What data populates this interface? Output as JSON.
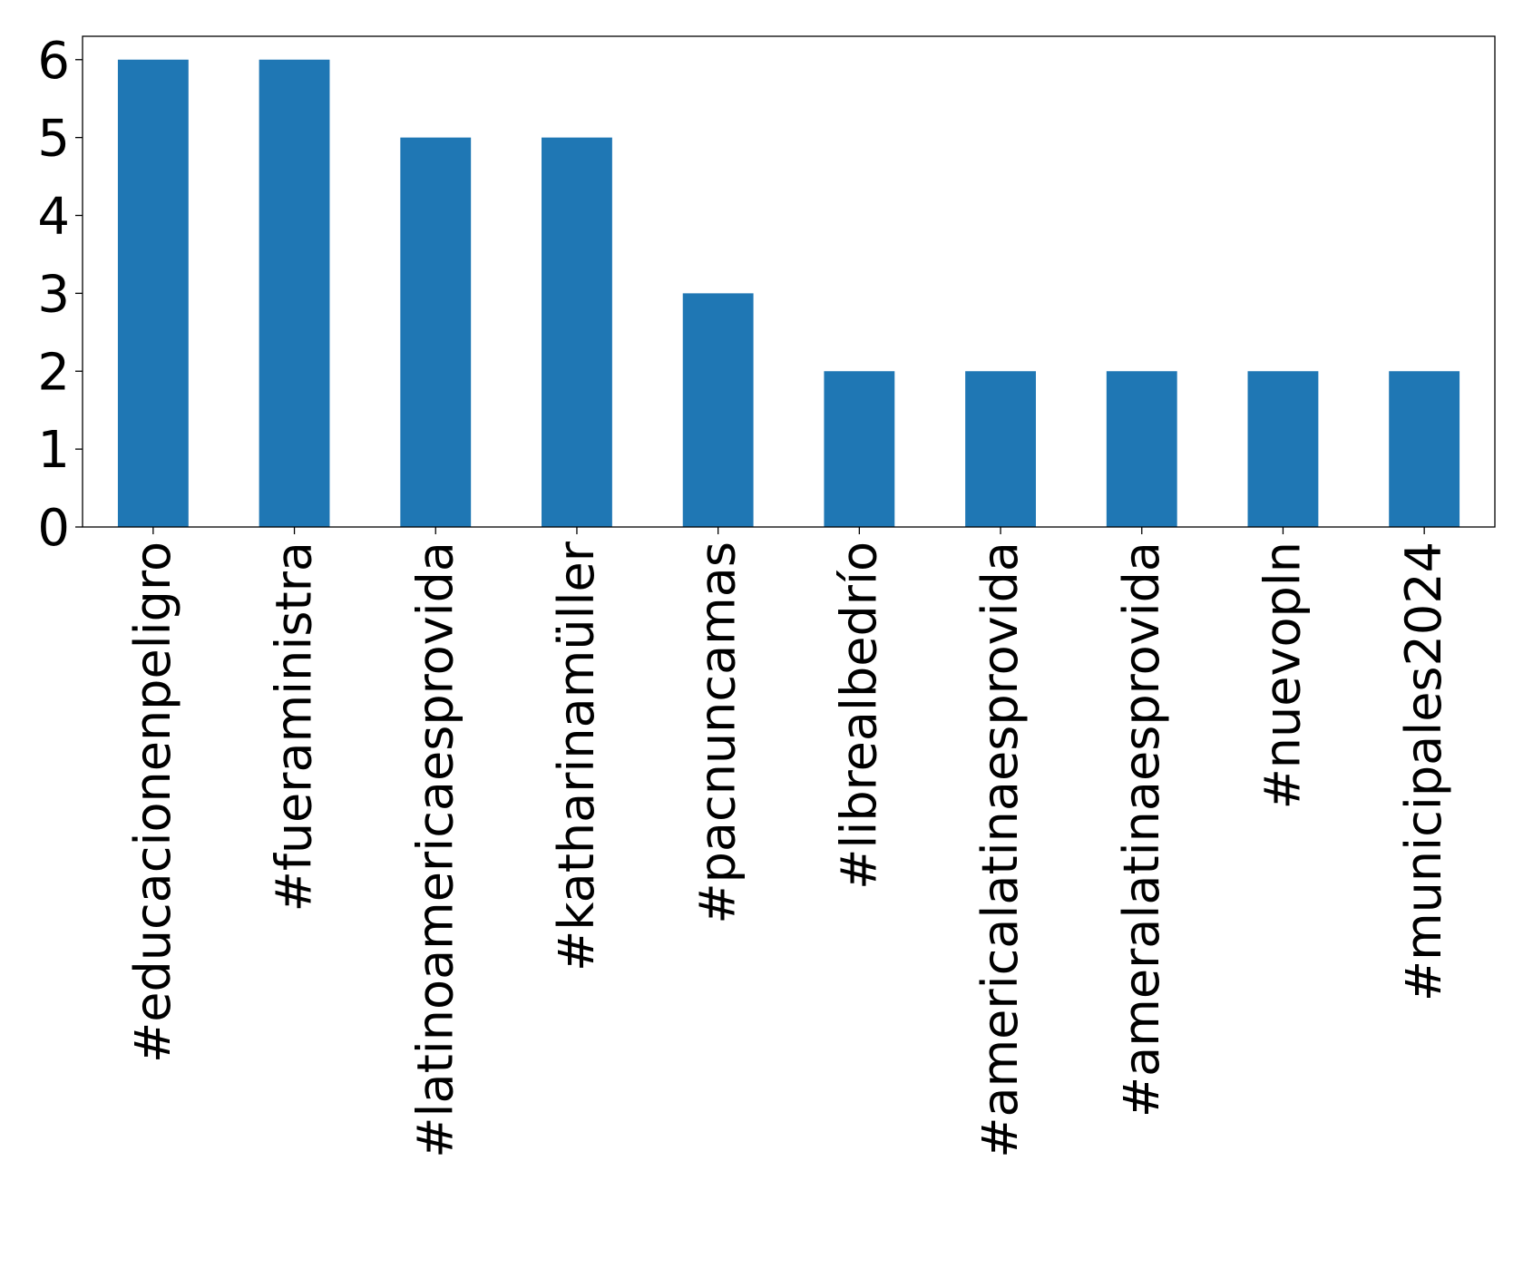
{
  "chart_data": {
    "type": "bar",
    "categories": [
      "#educacionenpeligro",
      "#fueraministra",
      "#latinoamericaesprovida",
      "#katharinamüller",
      "#pacnuncamas",
      "#librealbedrío",
      "#americalatinaesprovida",
      "#ameralatinaesprovida",
      "#nuevopln",
      "#municipales2024"
    ],
    "values": [
      6,
      6,
      5,
      5,
      3,
      2,
      2,
      2,
      2,
      2
    ],
    "ylim": [
      0,
      6.3
    ],
    "yticks": [
      0,
      1,
      2,
      3,
      4,
      5,
      6
    ],
    "title": "",
    "xlabel": "",
    "ylabel": "",
    "grid": false,
    "bar_color": "#1f77b4"
  }
}
